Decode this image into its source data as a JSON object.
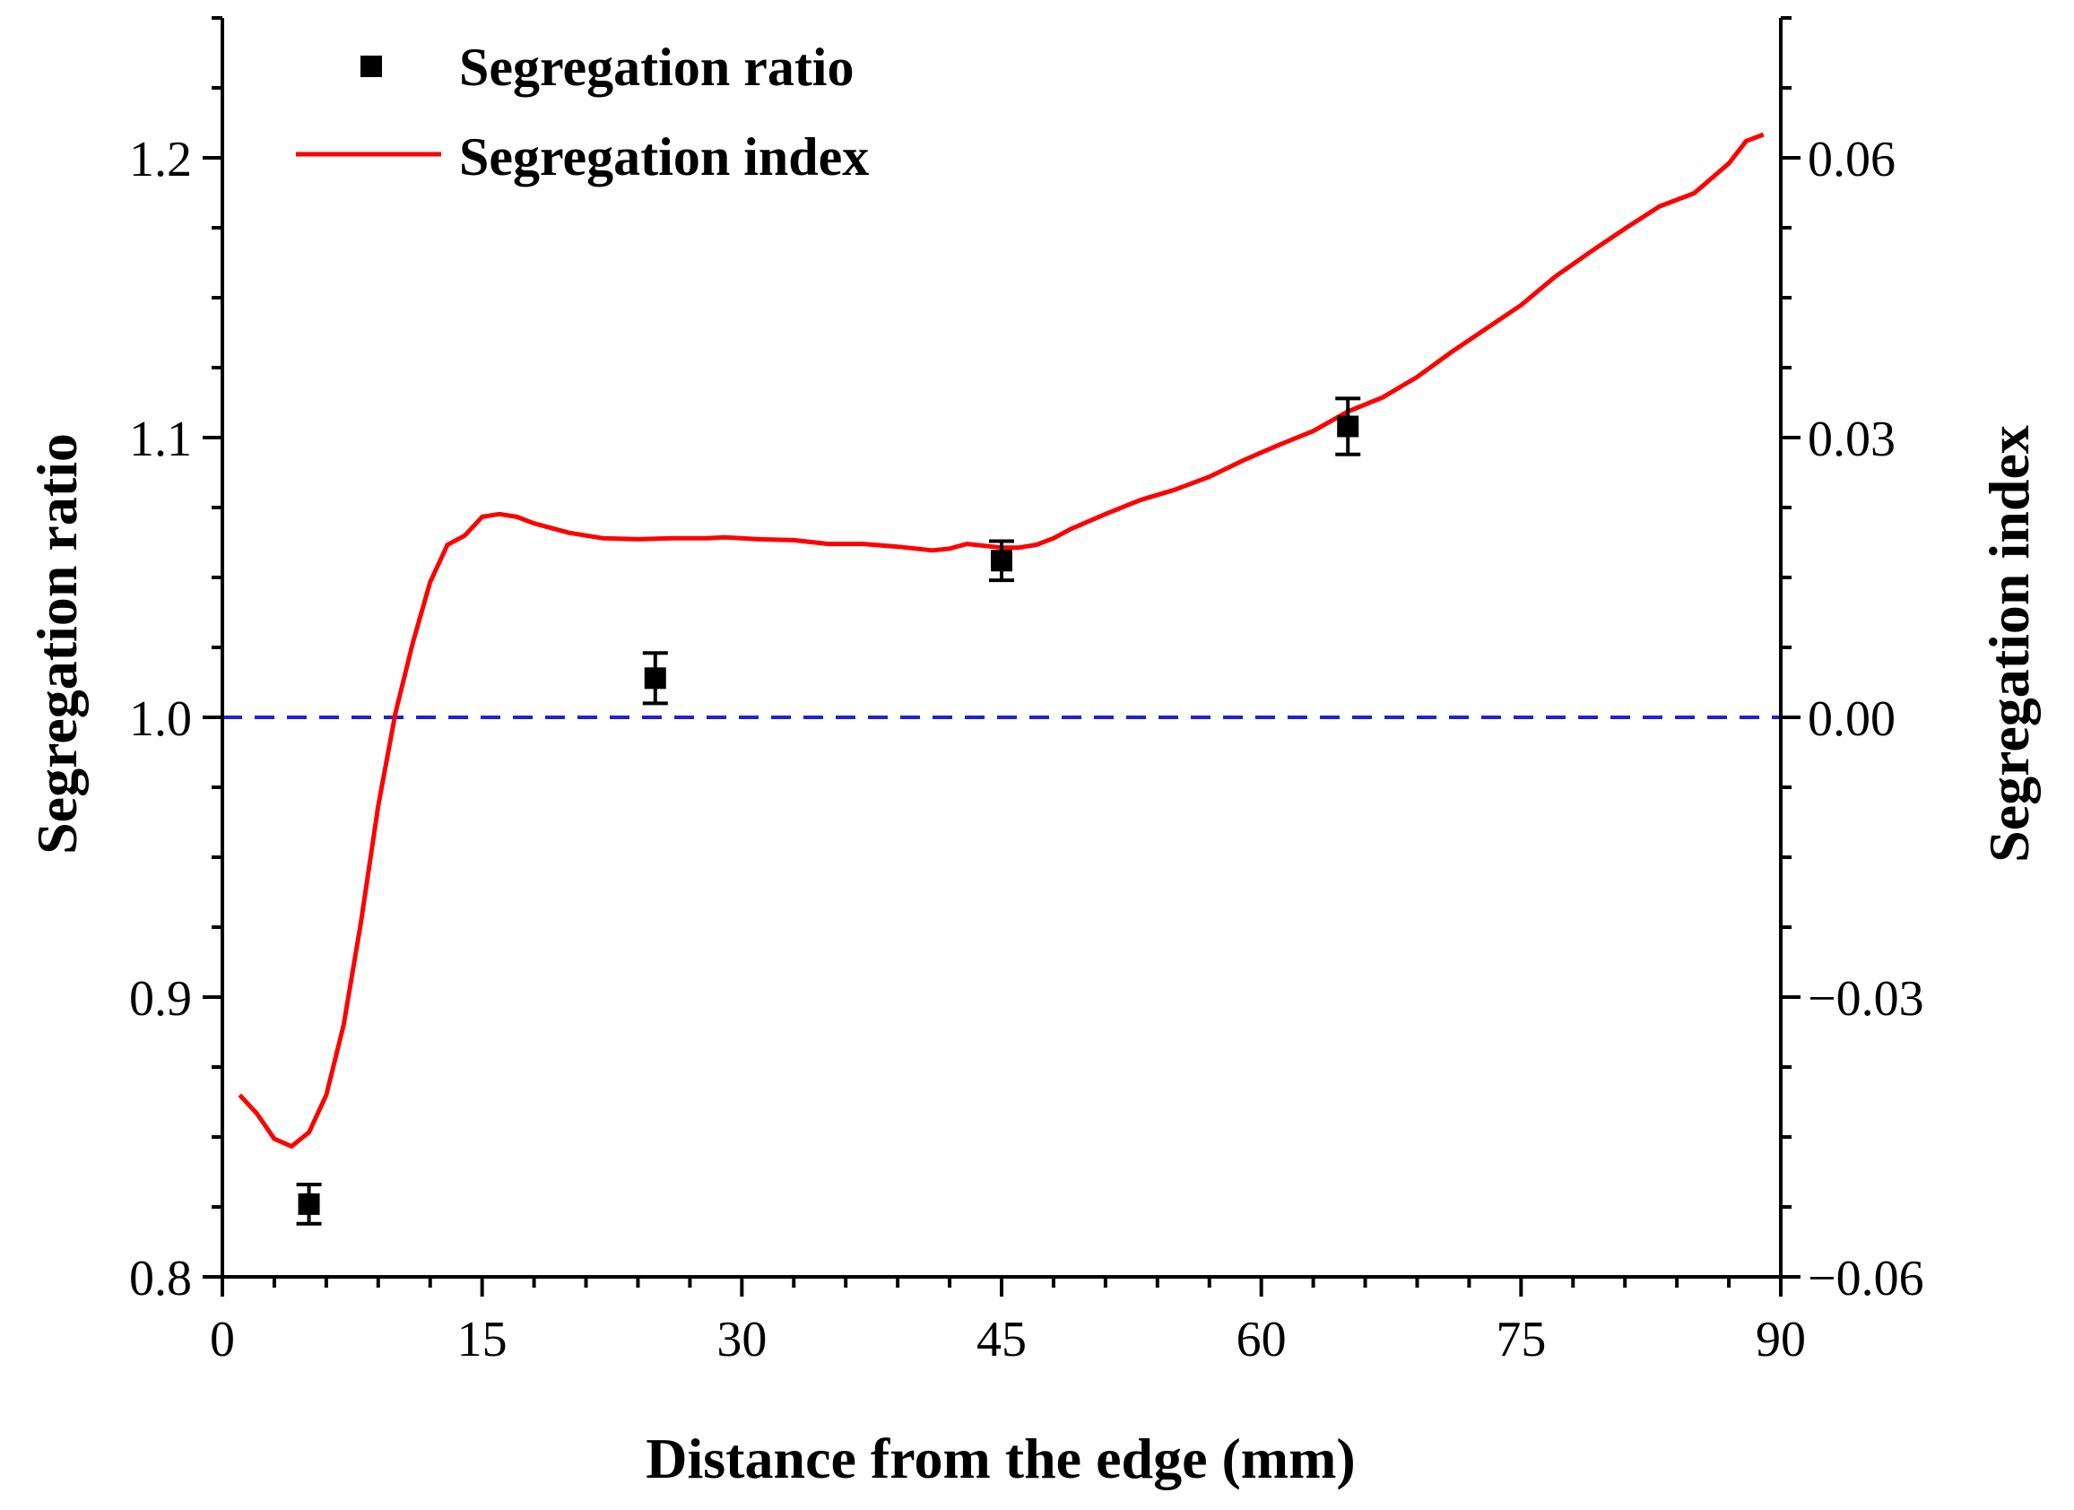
{
  "chart_data": {
    "type": "scatter+line",
    "title": "",
    "xlabel": "Distance from the edge (mm)",
    "ylabel_left": "Segregation ratio",
    "ylabel_right": "Segregation index",
    "xlim": [
      0,
      90
    ],
    "ylim_left": [
      0.8,
      1.25
    ],
    "ylim_right": [
      -0.06,
      0.075
    ],
    "x_ticks": [
      0,
      15,
      30,
      45,
      60,
      75,
      90
    ],
    "x_tick_labels": [
      "0",
      "15",
      "30",
      "45",
      "60",
      "75",
      "90"
    ],
    "y_left_ticks": [
      0.8,
      0.9,
      1.0,
      1.1,
      1.2
    ],
    "y_left_tick_labels": [
      "0.8",
      "0.9",
      "1.0",
      "1.1",
      "1.2"
    ],
    "y_right_ticks": [
      -0.06,
      -0.03,
      0.0,
      0.03,
      0.06
    ],
    "y_right_tick_labels": [
      "−0.06",
      "−0.03",
      "0.00",
      "0.03",
      "0.06"
    ],
    "reference_line": {
      "axis": "left",
      "y": 1.0,
      "style": "dashed",
      "color": "#1f1fe0"
    },
    "legend": {
      "placement": "top-left",
      "entries": [
        "Segregation ratio",
        "Segregation index"
      ]
    },
    "series": [
      {
        "name": "Segregation ratio",
        "axis": "left",
        "kind": "scatter",
        "color": "#000000",
        "x": [
          5,
          25,
          45,
          65
        ],
        "y": [
          0.826,
          1.014,
          1.056,
          1.104
        ],
        "err": [
          0.007,
          0.009,
          0.007,
          0.01
        ]
      },
      {
        "name": "Segregation index",
        "axis": "right",
        "kind": "line",
        "color": "#ff0000",
        "x": [
          1,
          2,
          3,
          4,
          5,
          6,
          7,
          8,
          9,
          10,
          11,
          12,
          13,
          14,
          15,
          16,
          17,
          18,
          20,
          22,
          24,
          26,
          28,
          29,
          31,
          33,
          35,
          37,
          39,
          41,
          42,
          43,
          45,
          46,
          47,
          48,
          49,
          51,
          53,
          55,
          57,
          59,
          61,
          63,
          65,
          67,
          69,
          71,
          73,
          75,
          77,
          79,
          81,
          83,
          85,
          87,
          88,
          89
        ],
        "y": [
          -0.0405,
          -0.0425,
          -0.0452,
          -0.046,
          -0.0445,
          -0.0405,
          -0.033,
          -0.022,
          -0.0095,
          0.0005,
          0.008,
          0.0145,
          0.0185,
          0.0195,
          0.0215,
          0.0218,
          0.0215,
          0.0208,
          0.0198,
          0.0192,
          0.0191,
          0.0192,
          0.0192,
          0.0193,
          0.0191,
          0.019,
          0.0186,
          0.0186,
          0.0183,
          0.0179,
          0.0181,
          0.0186,
          0.0182,
          0.0182,
          0.0185,
          0.0192,
          0.0202,
          0.0218,
          0.0233,
          0.0244,
          0.0258,
          0.0276,
          0.0292,
          0.0307,
          0.0328,
          0.0343,
          0.0365,
          0.0392,
          0.0417,
          0.0442,
          0.0473,
          0.0499,
          0.0524,
          0.0548,
          0.0562,
          0.0594,
          0.0618,
          0.0625
        ]
      }
    ]
  }
}
